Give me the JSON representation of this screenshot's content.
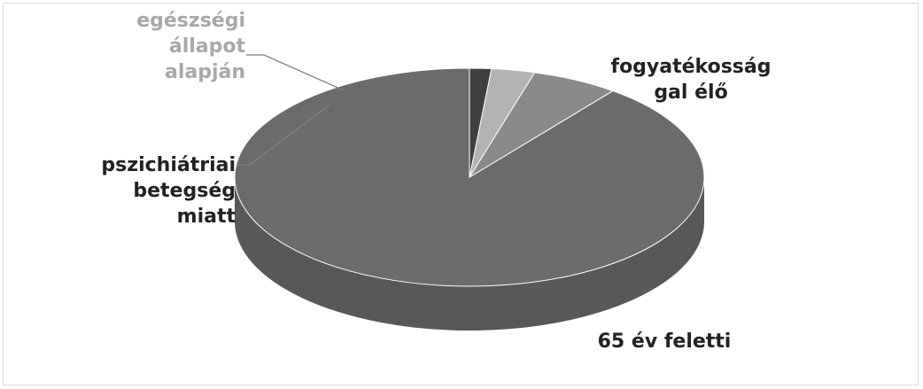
{
  "chart_data": {
    "type": "pie",
    "style": "3d",
    "title": "",
    "categories": [
      "65 év feletti",
      "pszichiátriai betegség miatt",
      "egészségi állapot alapján",
      "fogyatékosság gal élő"
    ],
    "values": [
      90,
      6,
      3,
      1.5
    ],
    "label_lines": [
      [
        "65 év feletti"
      ],
      [
        "pszichiátriai",
        "betegség",
        "miatt"
      ],
      [
        "egészségi",
        "állapot",
        "alapján"
      ],
      [
        "fogyatékosság",
        "gal élő"
      ]
    ],
    "colors": [
      "#6b6b6b",
      "#8a8a8a",
      "#b3b3b3",
      "#3f3f3f"
    ],
    "label_colors": [
      "#222222",
      "#222222",
      "#a8a8a8",
      "#222222"
    ],
    "legend": "none"
  }
}
